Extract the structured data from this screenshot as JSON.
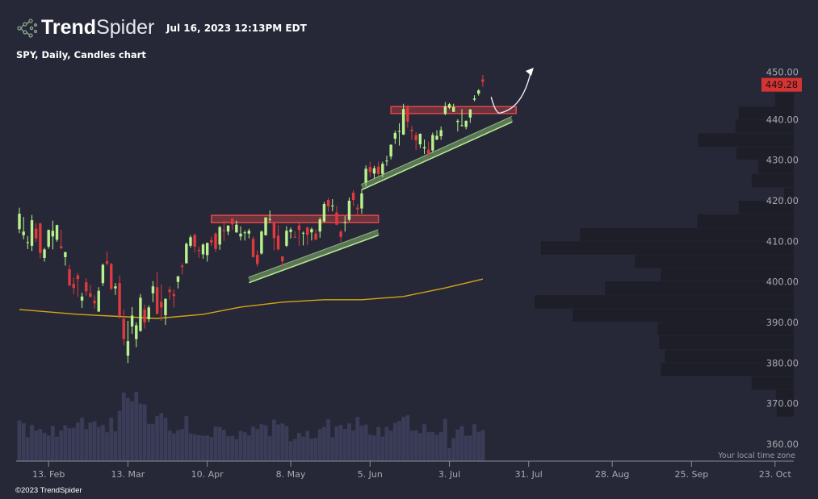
{
  "header": {
    "brand_bold": "Trend",
    "brand_light": "Spider",
    "timestamp": "Jul 16, 2023 12:13PM EDT",
    "subtitle": "SPY, Daily, Candles chart"
  },
  "footer": {
    "copyright": "©2023 TrendSpider",
    "timezone_note": "Your local time zone"
  },
  "colors": {
    "background": "#262837",
    "up": "#b8f28c",
    "down": "#e0393e",
    "sma": "#d4a514",
    "volume": "#3b3d58",
    "profile": "#1d1e28",
    "price_tag": "#d63333",
    "resistance": "#e04848",
    "support": "#b8f08c",
    "axis_text": "#a8a8b0"
  },
  "chart_data": {
    "type": "candlestick",
    "symbol": "SPY",
    "interval": "Daily",
    "last_price": "449.28",
    "ylim": [
      357,
      455
    ],
    "y_ticks": [
      "360.00",
      "370.00",
      "380.00",
      "390.00",
      "400.00",
      "410.00",
      "420.00",
      "430.00",
      "440.00",
      "450.00"
    ],
    "x_ticks": [
      {
        "date": "2023-02-13",
        "label": "13. Feb"
      },
      {
        "date": "2023-03-13",
        "label": "13. Mar"
      },
      {
        "date": "2023-04-10",
        "label": "10. Apr"
      },
      {
        "date": "2023-05-08",
        "label": "8. May"
      },
      {
        "date": "2023-06-05",
        "label": "5. Jun"
      },
      {
        "date": "2023-07-03",
        "label": "3. Jul"
      },
      {
        "date": "2023-07-31",
        "label": "31. Jul"
      },
      {
        "date": "2023-08-28",
        "label": "28. Aug"
      },
      {
        "date": "2023-09-25",
        "label": "25. Sep"
      },
      {
        "date": "2023-10-23",
        "label": "23. Oct"
      }
    ],
    "grid": false,
    "candles_columns": [
      "date",
      "open",
      "high",
      "low",
      "close",
      "volume_m"
    ],
    "candles": [
      [
        "2023-02-02",
        413.0,
        418.3,
        412.0,
        416.8,
        101
      ],
      [
        "2023-02-03",
        411.5,
        416.0,
        410.5,
        412.4,
        94
      ],
      [
        "2023-02-06",
        409.8,
        411.3,
        408.1,
        409.8,
        60
      ],
      [
        "2023-02-07",
        408.9,
        416.5,
        407.6,
        415.2,
        90
      ],
      [
        "2023-02-08",
        413.1,
        414.5,
        409.8,
        410.7,
        76
      ],
      [
        "2023-02-09",
        414.4,
        414.6,
        405.8,
        407.1,
        80
      ],
      [
        "2023-02-10",
        405.9,
        408.4,
        405.0,
        408.0,
        70
      ],
      [
        "2023-02-13",
        408.7,
        412.9,
        408.2,
        412.8,
        64
      ],
      [
        "2023-02-14",
        411.2,
        415.1,
        408.0,
        412.6,
        88
      ],
      [
        "2023-02-15",
        410.4,
        414.1,
        409.9,
        414.0,
        61
      ],
      [
        "2023-02-16",
        408.8,
        412.9,
        408.1,
        408.3,
        76
      ],
      [
        "2023-02-17",
        406.1,
        407.5,
        404.0,
        407.3,
        89
      ],
      [
        "2023-02-21",
        403.1,
        404.2,
        399.0,
        399.1,
        82
      ],
      [
        "2023-02-22",
        399.5,
        401.1,
        397.0,
        398.5,
        83
      ],
      [
        "2023-02-23",
        401.6,
        402.2,
        396.3,
        400.7,
        96
      ],
      [
        "2023-02-24",
        395.4,
        397.3,
        393.6,
        396.4,
        108
      ],
      [
        "2023-02-27",
        399.9,
        400.9,
        396.6,
        397.7,
        80
      ],
      [
        "2023-02-28",
        397.2,
        399.3,
        396.2,
        396.3,
        96
      ],
      [
        "2023-03-01",
        395.4,
        396.7,
        393.4,
        394.7,
        99
      ],
      [
        "2023-03-02",
        392.7,
        398.7,
        392.6,
        397.8,
        85
      ],
      [
        "2023-03-03",
        399.7,
        404.5,
        399.0,
        404.2,
        90
      ],
      [
        "2023-03-06",
        405.1,
        407.5,
        404.0,
        404.5,
        72
      ],
      [
        "2023-03-07",
        404.4,
        404.7,
        397.9,
        398.3,
        108
      ],
      [
        "2023-03-08",
        398.4,
        399.7,
        396.8,
        398.9,
        74
      ],
      [
        "2023-03-09",
        399.7,
        401.6,
        390.9,
        391.6,
        125
      ],
      [
        "2023-03-10",
        390.9,
        393.2,
        384.3,
        385.9,
        170
      ],
      [
        "2023-03-13",
        381.8,
        390.4,
        380.0,
        385.4,
        157
      ],
      [
        "2023-03-14",
        389.0,
        393.8,
        387.2,
        391.7,
        149
      ],
      [
        "2023-03-15",
        385.9,
        390.0,
        383.9,
        389.3,
        172
      ],
      [
        "2023-03-16",
        387.9,
        397.0,
        387.7,
        396.1,
        143
      ],
      [
        "2023-03-17",
        393.2,
        394.4,
        388.5,
        390.0,
        141
      ],
      [
        "2023-03-20",
        390.8,
        394.2,
        390.1,
        393.7,
        93
      ],
      [
        "2023-03-21",
        397.2,
        400.2,
        395.0,
        398.9,
        92
      ],
      [
        "2023-03-22",
        398.7,
        402.5,
        392.0,
        392.1,
        112
      ],
      [
        "2023-03-23",
        395.1,
        399.3,
        390.4,
        393.7,
        119
      ],
      [
        "2023-03-24",
        391.8,
        396.0,
        389.4,
        395.8,
        107
      ],
      [
        "2023-03-27",
        398.1,
        398.9,
        395.6,
        397.5,
        76
      ],
      [
        "2023-03-28",
        397.0,
        398.1,
        393.7,
        396.5,
        69
      ],
      [
        "2023-03-29",
        400.0,
        401.0,
        398.4,
        401.4,
        77
      ],
      [
        "2023-03-30",
        404.0,
        404.6,
        401.8,
        403.7,
        80
      ],
      [
        "2023-03-31",
        404.6,
        409.7,
        404.5,
        409.4,
        112
      ],
      [
        "2023-04-03",
        408.9,
        411.5,
        408.4,
        411.0,
        69
      ],
      [
        "2023-04-04",
        411.6,
        411.9,
        407.2,
        408.7,
        67
      ],
      [
        "2023-04-05",
        407.9,
        408.7,
        405.9,
        407.6,
        65
      ],
      [
        "2023-04-06",
        406.8,
        409.5,
        405.7,
        409.2,
        63
      ],
      [
        "2023-04-10",
        406.6,
        409.7,
        405.0,
        409.6,
        64
      ],
      [
        "2023-04-11",
        410.3,
        411.2,
        408.9,
        409.7,
        60
      ],
      [
        "2023-04-12",
        411.9,
        412.2,
        407.4,
        408.1,
        86
      ],
      [
        "2023-04-13",
        409.2,
        413.8,
        407.9,
        413.5,
        85
      ],
      [
        "2023-04-14",
        412.8,
        415.1,
        410.1,
        412.5,
        78
      ],
      [
        "2023-04-17",
        412.4,
        413.9,
        411.5,
        413.9,
        62
      ],
      [
        "2023-04-18",
        415.6,
        415.7,
        412.8,
        414.2,
        63
      ],
      [
        "2023-04-19",
        412.2,
        415.1,
        412.1,
        414.1,
        55
      ],
      [
        "2023-04-20",
        411.2,
        413.7,
        410.2,
        411.9,
        75
      ],
      [
        "2023-04-21",
        412.2,
        412.7,
        410.2,
        412.2,
        72
      ],
      [
        "2023-04-24",
        411.9,
        413.1,
        410.7,
        412.6,
        64
      ],
      [
        "2023-04-25",
        410.6,
        411.2,
        406.0,
        406.1,
        86
      ],
      [
        "2023-04-26",
        406.7,
        407.8,
        403.8,
        404.4,
        80
      ],
      [
        "2023-04-27",
        407.0,
        412.7,
        406.7,
        412.4,
        92
      ],
      [
        "2023-04-28",
        411.5,
        415.9,
        411.4,
        415.9,
        89
      ],
      [
        "2023-05-01",
        415.5,
        417.6,
        414.7,
        415.5,
        62
      ],
      [
        "2023-05-02",
        414.8,
        414.8,
        407.8,
        410.8,
        103
      ],
      [
        "2023-05-03",
        411.4,
        414.0,
        407.8,
        408.0,
        91
      ],
      [
        "2023-05-04",
        406.3,
        406.3,
        403.7,
        405.1,
        94
      ],
      [
        "2023-05-05",
        408.9,
        413.7,
        408.6,
        412.6,
        87
      ],
      [
        "2023-05-08",
        412.3,
        413.4,
        410.7,
        412.9,
        50
      ],
      [
        "2023-05-09",
        411.1,
        412.5,
        410.9,
        410.9,
        55
      ],
      [
        "2023-05-10",
        413.9,
        414.5,
        408.9,
        412.8,
        70
      ],
      [
        "2023-05-11",
        411.9,
        412.4,
        409.0,
        412.1,
        61
      ],
      [
        "2023-05-12",
        413.4,
        413.6,
        409.1,
        411.6,
        75
      ],
      [
        "2023-05-15",
        412.2,
        413.4,
        410.2,
        413.0,
        56
      ],
      [
        "2023-05-16",
        411.9,
        413.0,
        410.4,
        410.4,
        58
      ],
      [
        "2023-05-17",
        412.4,
        415.9,
        410.9,
        415.4,
        80
      ],
      [
        "2023-05-18",
        414.9,
        419.7,
        414.7,
        419.2,
        85
      ],
      [
        "2023-05-19",
        420.2,
        420.7,
        417.3,
        418.6,
        104
      ],
      [
        "2023-05-22",
        418.6,
        420.4,
        417.4,
        418.8,
        60
      ],
      [
        "2023-05-23",
        417.1,
        418.7,
        414.0,
        414.1,
        87
      ],
      [
        "2023-05-24",
        412.4,
        412.8,
        409.9,
        411.1,
        90
      ],
      [
        "2023-05-25",
        414.7,
        416.2,
        412.4,
        414.7,
        80
      ],
      [
        "2023-05-26",
        415.3,
        420.8,
        414.9,
        420.0,
        94
      ],
      [
        "2023-05-30",
        422.0,
        422.6,
        418.7,
        420.2,
        76
      ],
      [
        "2023-05-31",
        418.3,
        419.2,
        416.2,
        417.9,
        110
      ],
      [
        "2023-06-01",
        418.1,
        422.9,
        416.8,
        421.8,
        88
      ],
      [
        "2023-06-02",
        424.5,
        428.7,
        423.6,
        427.9,
        91
      ],
      [
        "2023-06-05",
        428.3,
        429.6,
        425.8,
        427.1,
        66
      ],
      [
        "2023-06-06",
        426.7,
        428.6,
        425.5,
        428.0,
        64
      ],
      [
        "2023-06-07",
        428.4,
        429.6,
        426.1,
        426.6,
        85
      ],
      [
        "2023-06-08",
        426.6,
        429.6,
        425.8,
        429.1,
        61
      ],
      [
        "2023-06-09",
        429.9,
        431.1,
        428.6,
        429.9,
        85
      ],
      [
        "2023-06-12",
        430.9,
        433.9,
        430.2,
        433.8,
        76
      ],
      [
        "2023-06-13",
        435.3,
        437.3,
        434.0,
        436.7,
        95
      ],
      [
        "2023-06-14",
        437.0,
        439.1,
        433.6,
        437.2,
        100
      ],
      [
        "2023-06-15",
        436.3,
        443.9,
        436.2,
        442.6,
        110
      ],
      [
        "2023-06-16",
        443.0,
        443.6,
        438.0,
        439.5,
        114
      ],
      [
        "2023-06-20",
        437.5,
        438.4,
        435.0,
        437.2,
        76
      ],
      [
        "2023-06-21",
        436.2,
        436.9,
        432.5,
        434.9,
        77
      ],
      [
        "2023-06-22",
        433.9,
        436.6,
        433.0,
        436.5,
        70
      ],
      [
        "2023-06-23",
        432.9,
        435.1,
        431.5,
        433.2,
        92
      ],
      [
        "2023-06-26",
        432.6,
        434.6,
        431.2,
        431.4,
        72
      ],
      [
        "2023-06-27",
        432.4,
        436.8,
        431.9,
        436.2,
        73
      ],
      [
        "2023-06-28",
        435.1,
        437.4,
        434.9,
        436.0,
        66
      ],
      [
        "2023-06-29",
        435.9,
        438.3,
        435.0,
        437.4,
        72
      ],
      [
        "2023-06-30",
        441.4,
        444.3,
        441.1,
        443.3,
        105
      ],
      [
        "2023-07-03",
        442.9,
        444.1,
        442.6,
        443.8,
        33
      ],
      [
        "2023-07-05",
        441.9,
        443.9,
        441.9,
        443.1,
        57
      ],
      [
        "2023-07-06",
        439.4,
        440.1,
        437.1,
        439.7,
        79
      ],
      [
        "2023-07-07",
        438.6,
        442.6,
        438.3,
        438.6,
        87
      ],
      [
        "2023-07-10",
        438.2,
        439.8,
        437.6,
        439.7,
        63
      ],
      [
        "2023-07-11",
        440.5,
        442.6,
        439.2,
        442.5,
        64
      ],
      [
        "2023-07-12",
        444.9,
        446.0,
        444.5,
        445.2,
        92
      ],
      [
        "2023-07-13",
        446.4,
        447.5,
        445.9,
        447.2,
        73
      ],
      [
        "2023-07-14",
        449.9,
        451.0,
        448.1,
        449.3,
        77
      ]
    ],
    "sma_200": [
      [
        "2023-02-02",
        393.2
      ],
      [
        "2023-02-23",
        392.0
      ],
      [
        "2023-03-22",
        391.0
      ],
      [
        "2023-04-06",
        392.0
      ],
      [
        "2023-04-20",
        393.8
      ],
      [
        "2023-05-04",
        395.0
      ],
      [
        "2023-05-18",
        395.6
      ],
      [
        "2023-06-01",
        395.6
      ],
      [
        "2023-06-15",
        396.4
      ],
      [
        "2023-06-30",
        398.5
      ],
      [
        "2023-07-14",
        400.7
      ]
    ],
    "volume_profile_columns": [
      "price_low",
      "price_high",
      "relative_volume"
    ],
    "volume_profile": [
      [
        443.2,
        446.6,
        23
      ],
      [
        440.0,
        443.2,
        68
      ],
      [
        436.6,
        440.0,
        72
      ],
      [
        433.2,
        436.6,
        118
      ],
      [
        430.0,
        433.2,
        71
      ],
      [
        426.6,
        430.0,
        44
      ],
      [
        423.2,
        426.6,
        52
      ],
      [
        420.0,
        423.2,
        12
      ],
      [
        416.6,
        420.0,
        68
      ],
      [
        413.2,
        416.6,
        119
      ],
      [
        410.0,
        413.2,
        264
      ],
      [
        406.6,
        410.0,
        312
      ],
      [
        403.3,
        406.6,
        196
      ],
      [
        400.1,
        403.3,
        164
      ],
      [
        396.7,
        400.1,
        233
      ],
      [
        393.3,
        396.7,
        320
      ],
      [
        390.1,
        393.3,
        273
      ],
      [
        386.7,
        390.1,
        168
      ],
      [
        383.3,
        386.7,
        166
      ],
      [
        380.0,
        383.3,
        159
      ],
      [
        376.7,
        380.0,
        164
      ],
      [
        373.3,
        376.7,
        52
      ],
      [
        370.0,
        373.3,
        22
      ],
      [
        366.7,
        370.0,
        21
      ]
    ],
    "annotations": {
      "resistance_zones": [
        {
          "from": "2023-04-11",
          "to": "2023-06-07",
          "low": 414.6,
          "high": 416.4
        },
        {
          "from": "2023-06-12",
          "to": "2023-07-26",
          "low": 441.5,
          "high": 443.2
        }
      ],
      "support_lines": [
        {
          "from": [
            "2023-04-24",
            400.5
          ],
          "to": [
            "2023-06-07",
            412.2
          ]
        },
        {
          "from": [
            "2023-06-01",
            423.4
          ],
          "to": [
            "2023-07-25",
            440.1
          ]
        }
      ],
      "projection_arrow": {
        "start": [
          "2023-07-18",
          445.6
        ],
        "bottom": [
          "2023-07-20",
          441.7
        ],
        "end": [
          "2023-08-01",
          452.6
        ]
      }
    }
  }
}
